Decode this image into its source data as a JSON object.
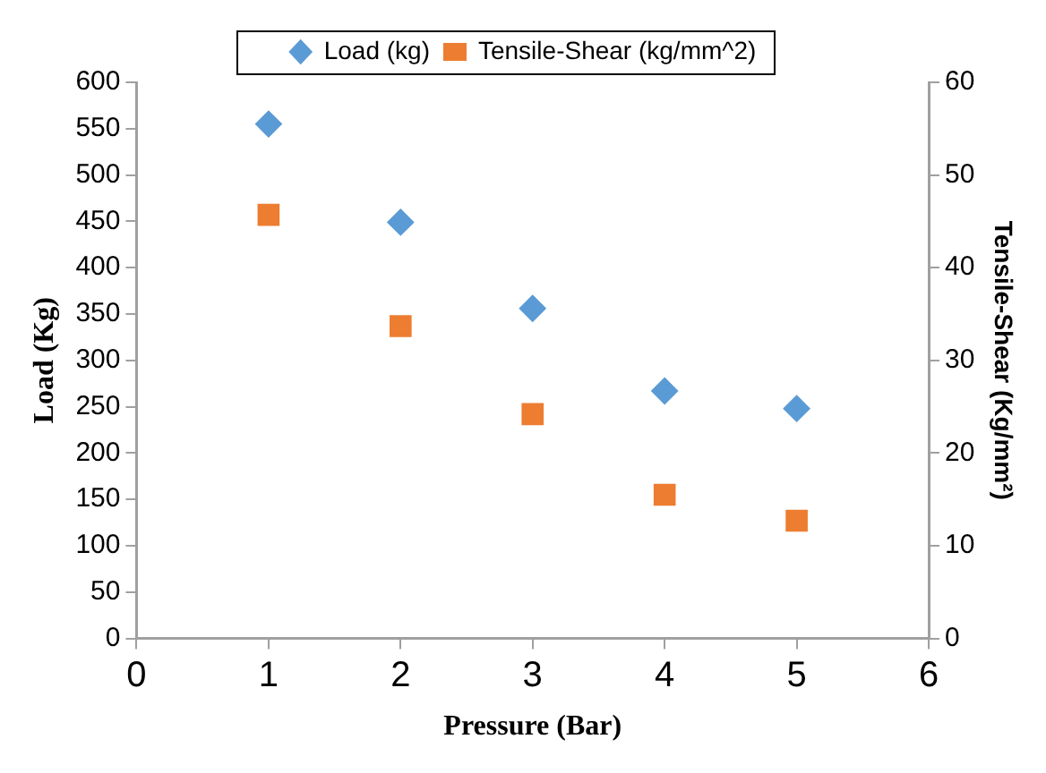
{
  "chart_data": {
    "type": "scatter",
    "xlabel": "Pressure (Bar)",
    "ylabel": "Load (Kg)",
    "y2label": "Tensile-Shear (Kg/mm²)",
    "x": [
      1,
      2,
      3,
      4,
      5
    ],
    "series": [
      {
        "name": "Load (kg)",
        "color": "#5b9bd5",
        "marker": "diamond",
        "values": [
          555,
          449,
          356,
          267,
          248
        ]
      },
      {
        "name": "Tensile-Shear (kg/mm^2)",
        "color": "#ed7d31",
        "marker": "square",
        "axis": "y2",
        "values": [
          45.7,
          33.7,
          24.2,
          15.5,
          12.7
        ]
      }
    ],
    "xlim": [
      0,
      6
    ],
    "xticks": [
      0,
      1,
      2,
      3,
      4,
      5,
      6
    ],
    "ylim": [
      0,
      600
    ],
    "yticks": [
      0,
      50,
      100,
      150,
      200,
      250,
      300,
      350,
      400,
      450,
      500,
      550,
      600
    ],
    "y2lim": [
      0,
      60
    ],
    "y2ticks": [
      0,
      10,
      20,
      30,
      40,
      50,
      60
    ],
    "legend": "top",
    "grid": false
  }
}
